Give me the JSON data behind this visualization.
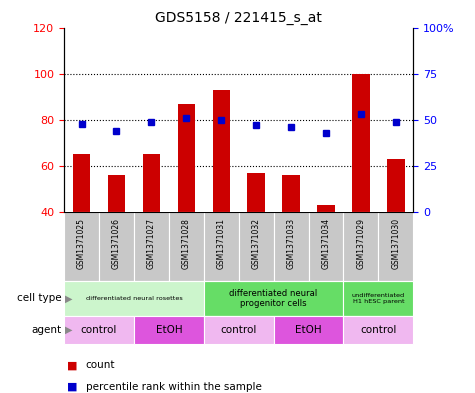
{
  "title": "GDS5158 / 221415_s_at",
  "samples": [
    "GSM1371025",
    "GSM1371026",
    "GSM1371027",
    "GSM1371028",
    "GSM1371031",
    "GSM1371032",
    "GSM1371033",
    "GSM1371034",
    "GSM1371029",
    "GSM1371030"
  ],
  "counts": [
    65,
    56,
    65,
    87,
    93,
    57,
    56,
    43,
    100,
    63
  ],
  "percentiles": [
    48,
    44,
    49,
    51,
    50,
    47,
    46,
    43,
    53,
    49
  ],
  "ylim_left": [
    40,
    120
  ],
  "ylim_right": [
    0,
    100
  ],
  "yticks_left": [
    40,
    60,
    80,
    100,
    120
  ],
  "yticks_right": [
    0,
    25,
    50,
    75,
    100
  ],
  "ytick_labels_right": [
    "0",
    "25",
    "50",
    "75",
    "100%"
  ],
  "bar_color": "#cc0000",
  "dot_color": "#0000cc",
  "cell_type_groups": [
    {
      "label": "differentiated neural rosettes",
      "start": 0,
      "end": 3,
      "color": "#ccf5cc",
      "fontsize": 6.5
    },
    {
      "label": "differentiated neural\nprogenitor cells",
      "start": 4,
      "end": 7,
      "color": "#66dd66",
      "fontsize": 8.5
    },
    {
      "label": "undifferentiated\nH1 hESC parent",
      "start": 8,
      "end": 9,
      "color": "#66dd66",
      "fontsize": 6.5
    }
  ],
  "agent_groups": [
    {
      "label": "control",
      "start": 0,
      "end": 1,
      "color": "#f0b8f0"
    },
    {
      "label": "EtOH",
      "start": 2,
      "end": 3,
      "color": "#dd55dd"
    },
    {
      "label": "control",
      "start": 4,
      "end": 5,
      "color": "#f0b8f0"
    },
    {
      "label": "EtOH",
      "start": 6,
      "end": 7,
      "color": "#dd55dd"
    },
    {
      "label": "control",
      "start": 8,
      "end": 9,
      "color": "#f0b8f0"
    }
  ],
  "legend_count_color": "#cc0000",
  "legend_pct_color": "#0000cc",
  "bar_width": 0.5,
  "tick_bg_color": "#c8c8c8"
}
